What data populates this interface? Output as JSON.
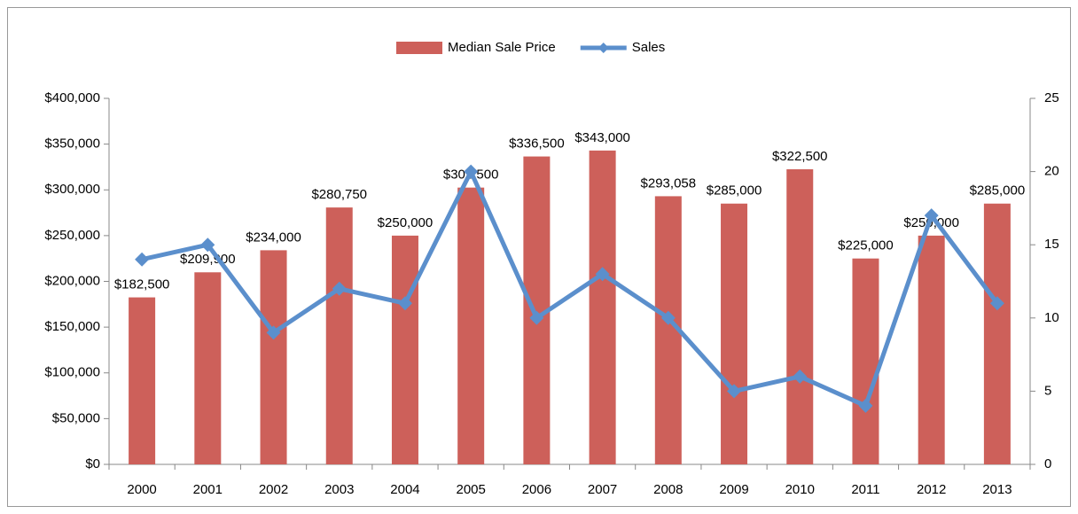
{
  "chart_data": {
    "type": "bar_line",
    "categories": [
      "2000",
      "2001",
      "2002",
      "2003",
      "2004",
      "2005",
      "2006",
      "2007",
      "2008",
      "2009",
      "2010",
      "2011",
      "2012",
      "2013"
    ],
    "series": [
      {
        "name": "Median Sale Price",
        "type": "bar",
        "color": "#cd605a",
        "values": [
          182500,
          209900,
          234000,
          280750,
          250000,
          302500,
          336500,
          343000,
          293058,
          285000,
          322500,
          225000,
          250000,
          285000
        ],
        "value_labels": [
          "$182,500",
          "$209,900",
          "$234,000",
          "$280,750",
          "$250,000",
          "$302,500",
          "$336,500",
          "$343,000",
          "$293,058",
          "$285,000",
          "$322,500",
          "$225,000",
          "$250,000",
          "$285,000"
        ]
      },
      {
        "name": "Sales",
        "type": "line",
        "axis": "y2",
        "color": "#5b8fcc",
        "values": [
          14,
          15,
          9,
          12,
          11,
          20,
          10,
          13,
          10,
          5,
          6,
          4,
          17,
          11
        ]
      }
    ],
    "ylim": [
      0,
      400000
    ],
    "yticks": [
      {
        "value": 0,
        "label": "$0"
      },
      {
        "value": 50000,
        "label": "$50,000"
      },
      {
        "value": 100000,
        "label": "$100,000"
      },
      {
        "value": 150000,
        "label": "$150,000"
      },
      {
        "value": 200000,
        "label": "$200,000"
      },
      {
        "value": 250000,
        "label": "$250,000"
      },
      {
        "value": 300000,
        "label": "$300,000"
      },
      {
        "value": 350000,
        "label": "$350,000"
      },
      {
        "value": 400000,
        "label": "$400,000"
      }
    ],
    "y2lim": [
      0,
      25
    ],
    "y2ticks": [
      0,
      5,
      10,
      15,
      20,
      25
    ],
    "legend": "top",
    "grid": false
  }
}
